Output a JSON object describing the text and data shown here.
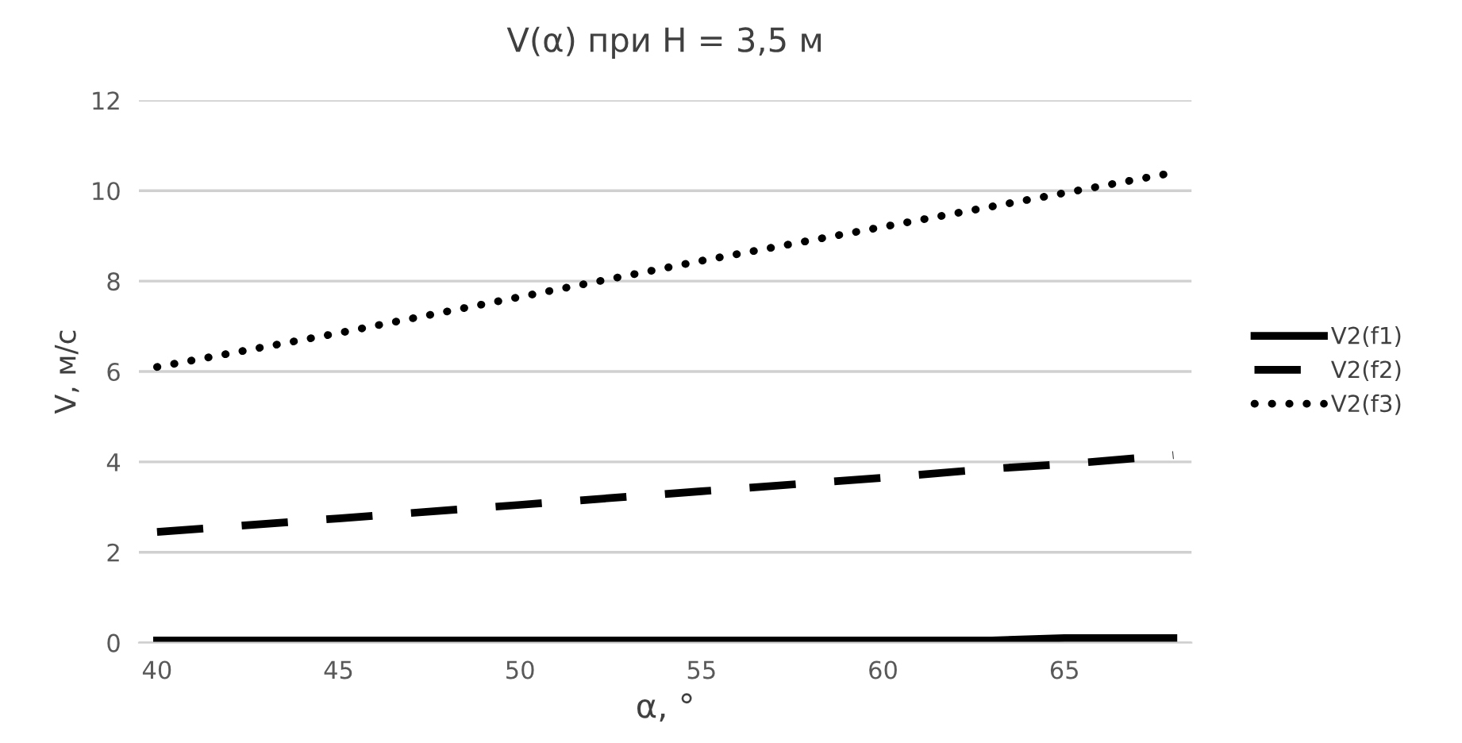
{
  "chart_data": {
    "type": "line",
    "title": "V(α) при H = 3,5 м",
    "xlabel": "α, °",
    "ylabel": "V, м/с",
    "x": [
      40,
      45,
      50,
      55,
      60,
      63,
      65,
      68
    ],
    "series": [
      {
        "name": "V2(f1)",
        "color": "#000000",
        "line_style": "solid",
        "values": [
          0.05,
          0.05,
          0.05,
          0.05,
          0.05,
          0.05,
          0.1,
          0.1
        ]
      },
      {
        "name": "V2(f2)",
        "color": "#000000",
        "line_style": "dashed",
        "values": [
          2.45,
          2.75,
          3.05,
          3.35,
          3.65,
          3.85,
          3.95,
          4.15
        ]
      },
      {
        "name": "V2(f3)",
        "color": "#000000",
        "line_style": "dotted",
        "values": [
          6.1,
          6.85,
          7.65,
          8.45,
          9.2,
          9.65,
          9.95,
          10.4
        ]
      }
    ],
    "xlim": [
      39.5,
      68.5
    ],
    "xticks": [
      40,
      45,
      50,
      55,
      60,
      65
    ],
    "ylim": [
      0,
      12
    ],
    "yticks": [
      0,
      2,
      4,
      6,
      8,
      10,
      12
    ],
    "grid": "y",
    "legend": "right",
    "marker": "none"
  }
}
